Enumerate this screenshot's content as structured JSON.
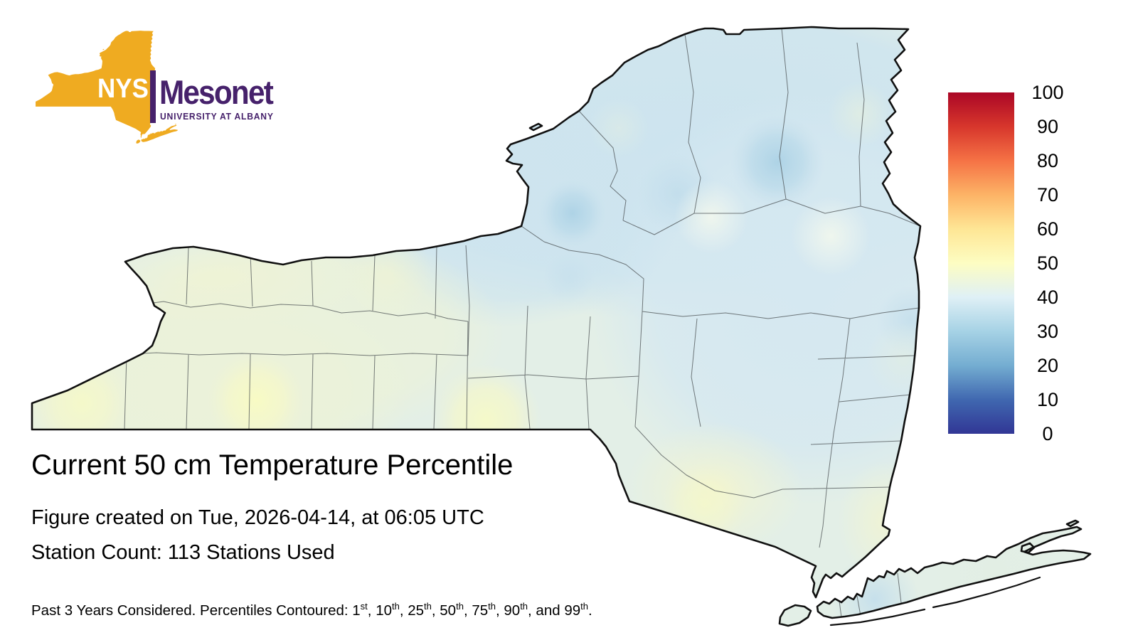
{
  "logo": {
    "nys": "NYS",
    "brand": "Mesonet",
    "subtitle": "UNIVERSITY AT ALBANY",
    "gold": "#efab21",
    "purple": "#46216b"
  },
  "title": "Current 50 cm Temperature Percentile",
  "created_line": "Figure created on Tue, 2026-04-14, at 06:05 UTC",
  "station_line": "Station Count: 113 Stations Used",
  "footnote": {
    "prefix": "Past 3 Years Considered. Percentiles Contoured: ",
    "items": [
      {
        "num": "1",
        "sup": "st"
      },
      {
        "num": "10",
        "sup": "th"
      },
      {
        "num": "25",
        "sup": "th"
      },
      {
        "num": "50",
        "sup": "th"
      },
      {
        "num": "75",
        "sup": "th"
      },
      {
        "num": "90",
        "sup": "th"
      },
      {
        "num": "99",
        "sup": "th"
      }
    ],
    "suffix": "."
  },
  "colorbar": {
    "ticks": [
      "100",
      "90",
      "80",
      "70",
      "60",
      "50",
      "40",
      "30",
      "20",
      "10",
      "0"
    ],
    "stops": [
      {
        "v": 0,
        "c": "#313695"
      },
      {
        "v": 10,
        "c": "#4068b0"
      },
      {
        "v": 20,
        "c": "#74add1"
      },
      {
        "v": 30,
        "c": "#a6d2e5"
      },
      {
        "v": 40,
        "c": "#dff0f6"
      },
      {
        "v": 50,
        "c": "#fdfdc2"
      },
      {
        "v": 60,
        "c": "#fee695"
      },
      {
        "v": 70,
        "c": "#fdb366"
      },
      {
        "v": 80,
        "c": "#f57245"
      },
      {
        "v": 90,
        "c": "#d7362c"
      },
      {
        "v": 100,
        "c": "#ab0726"
      }
    ]
  },
  "map": {
    "palette": {
      "state_base": "#e3efe7",
      "north_blue": "#cfe4ef",
      "east_blue": "#d5e8f1",
      "spot_blue": "#aed3e6",
      "west_yellow_green": "#ecf2d8",
      "spot_yellow": "#f8fbc4",
      "pale_white_green": "#eff6ee",
      "county_line": "#4a4f52",
      "state_outline": "#101010"
    }
  }
}
